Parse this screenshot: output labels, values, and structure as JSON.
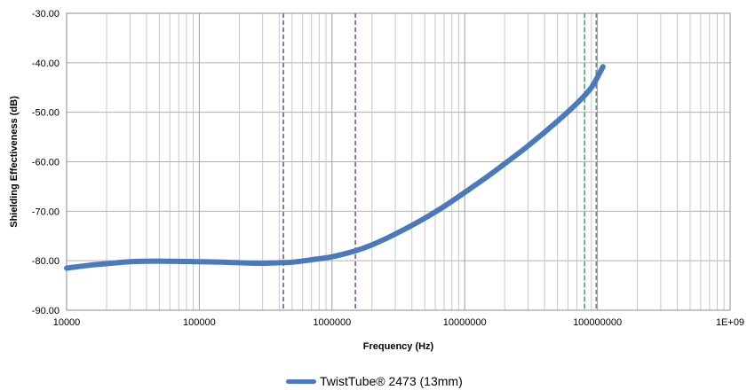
{
  "chart_data": {
    "type": "line",
    "x_scale": "log",
    "xlabel": "Frequency (Hz)",
    "ylabel": "Shielding Effectiveness (dB)",
    "xlim": [
      10000,
      1000000000
    ],
    "ylim": [
      -90,
      -30
    ],
    "x_tick_labels": [
      "10000",
      "100000",
      "1000000",
      "10000000",
      "100000000",
      "1E+09"
    ],
    "y_tick_labels": [
      "-30.00",
      "-40.00",
      "-50.00",
      "-60.00",
      "-70.00",
      "-80.00",
      "-90.00"
    ],
    "grid": true,
    "legend_position": "bottom",
    "series": [
      {
        "name": "TwistTube® 2473 (13mm)",
        "color": "#4a7abb",
        "x": [
          10000,
          15000,
          20000,
          30000,
          40000,
          60000,
          100000,
          150000,
          200000,
          300000,
          400000,
          500000,
          700000,
          1000000,
          1500000,
          2000000,
          3000000,
          5000000,
          7000000,
          10000000,
          15000000,
          20000000,
          30000000,
          50000000,
          70000000,
          90000000,
          110000000
        ],
        "y": [
          -81.5,
          -80.9,
          -80.6,
          -80.2,
          -80.1,
          -80.1,
          -80.2,
          -80.3,
          -80.4,
          -80.5,
          -80.4,
          -80.3,
          -79.8,
          -79.2,
          -78.0,
          -76.8,
          -74.6,
          -71.4,
          -69.0,
          -66.2,
          -62.9,
          -60.4,
          -56.8,
          -51.8,
          -48.2,
          -45.0,
          -40.8
        ]
      }
    ],
    "vertical_markers": [
      {
        "x": 430000,
        "color": "#7a3fa8",
        "style": "dashed"
      },
      {
        "x": 1500000,
        "color": "#7a3fa8",
        "style": "dashed"
      },
      {
        "x": 80000000,
        "color": "#3aa85a",
        "style": "dashed"
      },
      {
        "x": 98000000,
        "color": "#3aa85a",
        "style": "dashed"
      }
    ]
  }
}
